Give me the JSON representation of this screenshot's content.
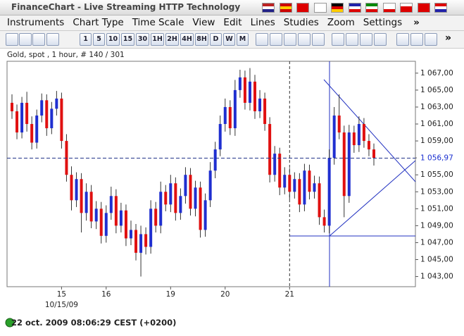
{
  "window_title": "FinanceChart - Live Streaming HTTP Technology",
  "menu": [
    "Instruments",
    "Chart Type",
    "Time Scale",
    "View",
    "Edit",
    "Lines",
    "Studies",
    "Zoom",
    "Settings"
  ],
  "toolbar": [
    "1",
    "5",
    "10",
    "15",
    "30",
    "1H",
    "2H",
    "4H",
    "8H",
    "D",
    "W",
    "M"
  ],
  "status": "22 oct. 2009 08:06:29  CEST (+0200)",
  "chart_data": {
    "type": "candlestick",
    "title": "Gold, spot , 1 hour, # 140 / 301",
    "categories": [
      null,
      null,
      null,
      null,
      null,
      null,
      null,
      null,
      null,
      null,
      "15",
      null,
      null,
      null,
      null,
      null,
      null,
      null,
      null,
      "16",
      null,
      null,
      null,
      null,
      null,
      null,
      null,
      null,
      null,
      null,
      null,
      null,
      "19",
      null,
      null,
      null,
      null,
      null,
      null,
      null,
      null,
      null,
      null,
      "20",
      null,
      null,
      null,
      null,
      null,
      null,
      null,
      null,
      null,
      null,
      null,
      null,
      "21",
      null,
      null,
      null,
      null,
      null,
      null,
      null,
      null,
      null,
      null,
      null,
      null,
      null,
      null,
      null,
      null,
      null
    ],
    "date_label": "10/15/09",
    "open": [
      1063.5,
      1062.5,
      1060.0,
      1063.5,
      1061.0,
      1058.8,
      1062.0,
      1063.8,
      1060.5,
      1062.8,
      1064.0,
      1059.0,
      1055.0,
      1052.0,
      1054.5,
      1050.5,
      1053.0,
      1049.5,
      1051.0,
      1047.8,
      1050.5,
      1052.5,
      1049.0,
      1050.8,
      1047.5,
      1048.5,
      1045.8,
      1048.0,
      1046.5,
      1051.0,
      1049.0,
      1053.0,
      1051.5,
      1054.0,
      1050.5,
      1052.5,
      1055.0,
      1051.0,
      1053.5,
      1048.5,
      1052.0,
      1055.5,
      1058.0,
      1061.0,
      1063.0,
      1060.5,
      1065.0,
      1066.5,
      1063.5,
      1066.0,
      1062.5,
      1064.0,
      1061.0,
      1055.0,
      1057.5,
      1053.5,
      1055.0,
      1053.0,
      1054.5,
      1051.5,
      1055.5,
      1053.0,
      1054.0,
      1050.0,
      1049.0,
      1057.0,
      1062.0,
      1060.0,
      1052.5,
      1060.0,
      1058.5,
      1061.0,
      1059.0,
      1058.0
    ],
    "high": [
      1064.5,
      1063.3,
      1064.2,
      1064.8,
      1061.9,
      1062.7,
      1064.6,
      1064.5,
      1063.6,
      1064.9,
      1064.7,
      1059.8,
      1056.0,
      1055.3,
      1055.2,
      1054.0,
      1053.8,
      1051.9,
      1051.8,
      1051.4,
      1053.6,
      1053.3,
      1051.7,
      1051.5,
      1049.6,
      1049.2,
      1049.0,
      1048.8,
      1052.0,
      1051.8,
      1054.2,
      1053.8,
      1055.0,
      1054.7,
      1053.4,
      1055.9,
      1055.8,
      1054.3,
      1054.2,
      1052.8,
      1056.5,
      1058.9,
      1062.0,
      1064.0,
      1063.8,
      1066.2,
      1067.4,
      1067.3,
      1067.6,
      1066.8,
      1065.0,
      1064.7,
      1061.8,
      1058.4,
      1058.2,
      1055.9,
      1055.8,
      1055.3,
      1055.2,
      1056.3,
      1056.2,
      1054.9,
      1054.8,
      1050.9,
      1058.0,
      1063.0,
      1064.5,
      1060.8,
      1060.9,
      1060.8,
      1061.9,
      1061.7,
      1059.8,
      1058.7
    ],
    "low": [
      1061.6,
      1059.2,
      1059.3,
      1060.1,
      1058.0,
      1058.1,
      1061.2,
      1059.6,
      1059.8,
      1062.0,
      1058.1,
      1054.2,
      1050.8,
      1051.2,
      1048.2,
      1049.6,
      1048.7,
      1048.6,
      1046.9,
      1047.0,
      1049.7,
      1048.1,
      1048.2,
      1046.6,
      1046.7,
      1044.9,
      1043.0,
      1045.6,
      1045.7,
      1048.2,
      1048.1,
      1050.7,
      1050.6,
      1049.6,
      1049.7,
      1051.6,
      1050.2,
      1050.1,
      1047.6,
      1047.7,
      1051.2,
      1054.6,
      1057.2,
      1060.1,
      1059.7,
      1059.6,
      1064.1,
      1062.7,
      1062.6,
      1061.6,
      1061.7,
      1060.2,
      1054.1,
      1054.2,
      1052.6,
      1052.7,
      1052.1,
      1052.2,
      1050.6,
      1050.7,
      1052.1,
      1052.2,
      1049.1,
      1048.2,
      1048.1,
      1056.2,
      1059.2,
      1050.0,
      1051.7,
      1057.6,
      1057.7,
      1058.2,
      1057.2,
      1056.1
    ],
    "close": [
      1062.5,
      1060.0,
      1063.5,
      1061.0,
      1058.8,
      1062.0,
      1063.8,
      1060.5,
      1062.8,
      1064.0,
      1059.0,
      1055.0,
      1052.0,
      1054.5,
      1050.5,
      1053.0,
      1049.5,
      1051.0,
      1047.8,
      1050.5,
      1052.5,
      1049.0,
      1050.8,
      1047.5,
      1048.5,
      1045.8,
      1048.0,
      1046.5,
      1051.0,
      1049.0,
      1053.0,
      1051.5,
      1054.0,
      1050.5,
      1052.5,
      1055.0,
      1051.0,
      1053.5,
      1048.5,
      1052.0,
      1055.5,
      1058.0,
      1061.0,
      1063.0,
      1060.5,
      1065.0,
      1066.5,
      1063.5,
      1066.0,
      1062.5,
      1064.0,
      1061.0,
      1055.0,
      1057.5,
      1053.5,
      1055.0,
      1053.0,
      1054.5,
      1051.5,
      1055.5,
      1053.0,
      1054.0,
      1050.0,
      1049.0,
      1057.0,
      1062.0,
      1060.0,
      1052.5,
      1060.0,
      1058.5,
      1061.0,
      1059.0,
      1058.0,
      1057.0
    ],
    "up_color": "#1f2fd0",
    "down_color": "#e01010",
    "ylim": [
      1041.8,
      1068.4
    ],
    "yticks": [
      {
        "value": 1043,
        "label": "1 043,00"
      },
      {
        "value": 1045,
        "label": "1 045,00"
      },
      {
        "value": 1047,
        "label": "1 047,00"
      },
      {
        "value": 1049,
        "label": "1 049,00"
      },
      {
        "value": 1051,
        "label": "1 051,00"
      },
      {
        "value": 1053,
        "label": "1 053,00"
      },
      {
        "value": 1055,
        "label": "1 055,00"
      },
      {
        "value": 1057,
        "label": "1 057,00"
      },
      {
        "value": 1059,
        "label": "1 059,00"
      },
      {
        "value": 1061,
        "label": "1 061,00"
      },
      {
        "value": 1063,
        "label": "1 063,00"
      },
      {
        "value": 1065,
        "label": "1 065,00"
      },
      {
        "value": 1067,
        "label": "1 067,00"
      }
    ],
    "last_value": {
      "value": 1056.97,
      "label": "1 056,97"
    }
  }
}
